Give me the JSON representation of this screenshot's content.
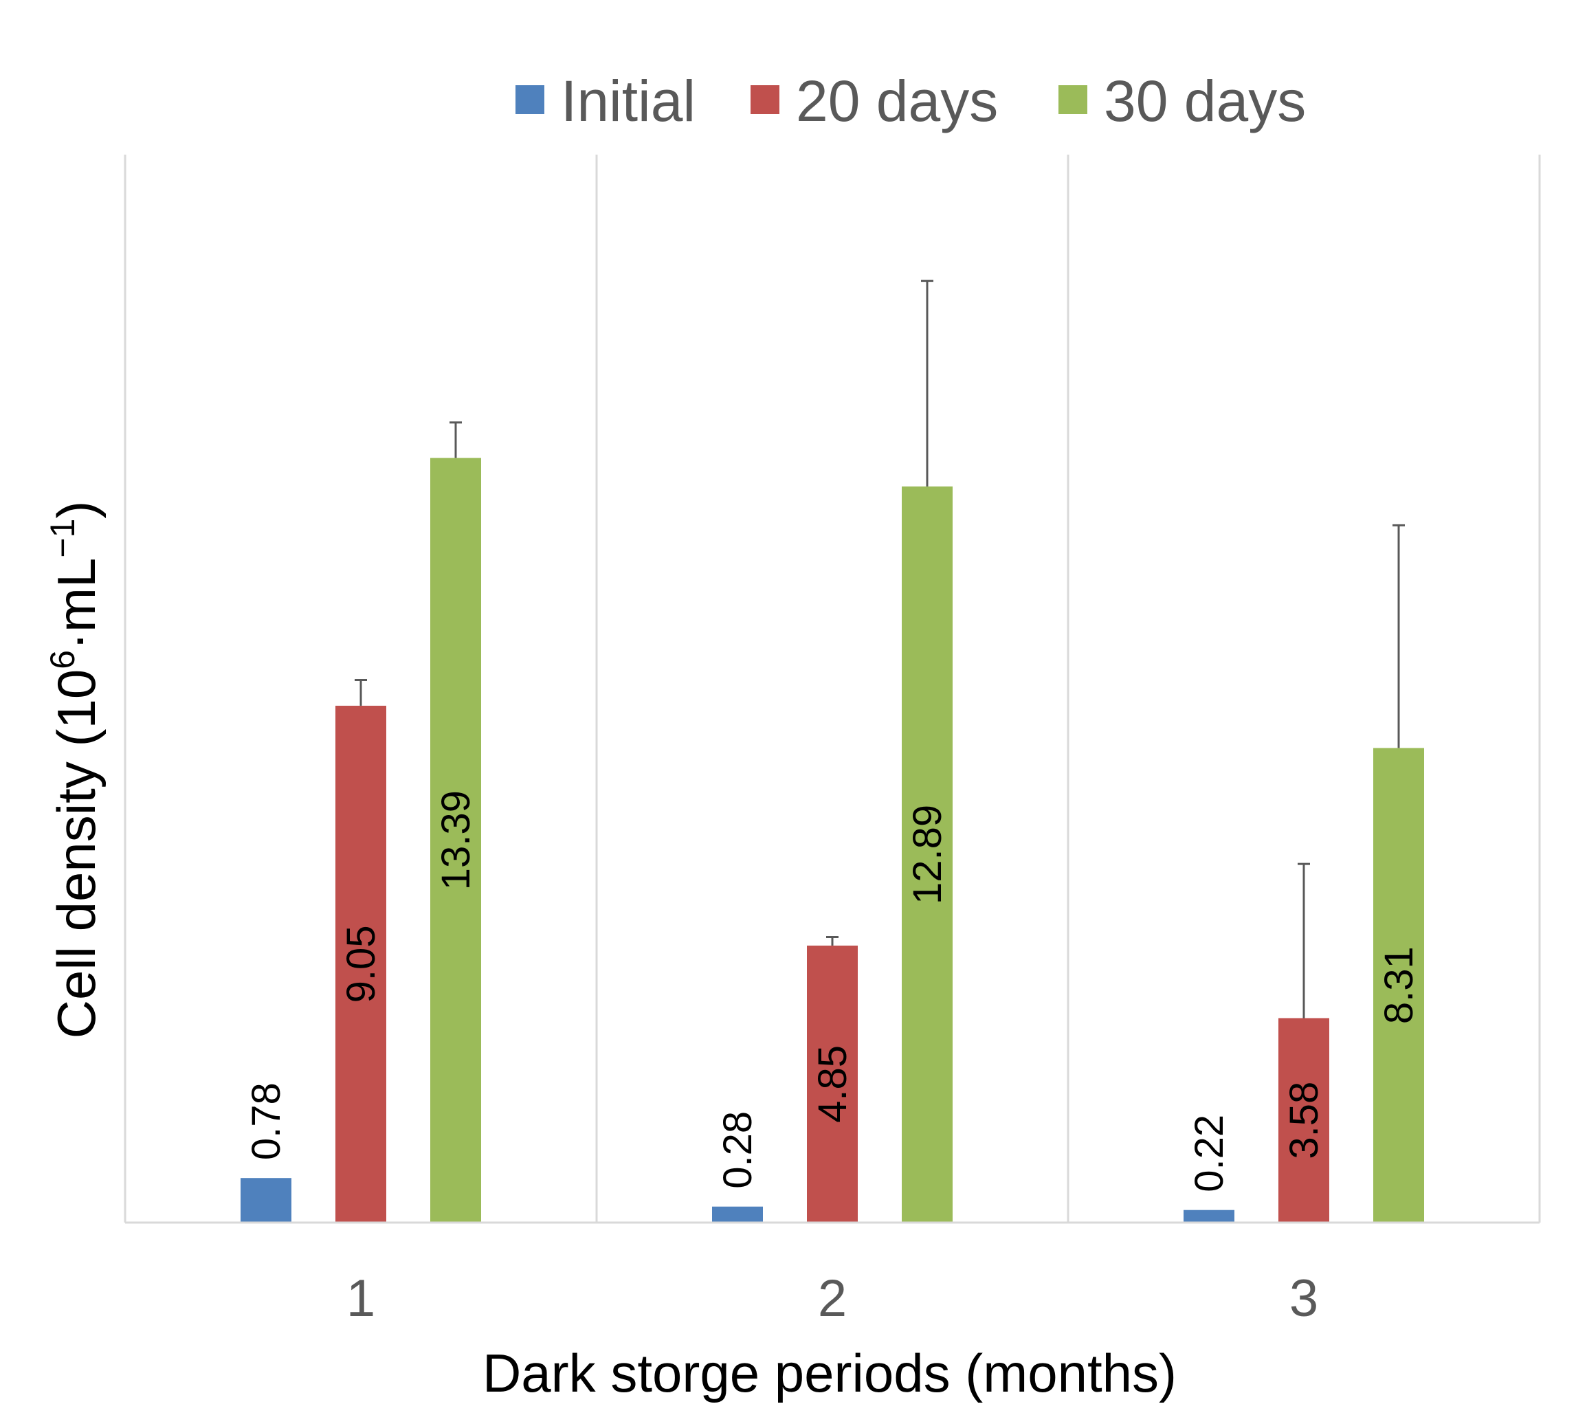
{
  "chart_data": {
    "type": "bar",
    "title": "",
    "xlabel": "Dark storge periods (months)",
    "ylabel_main": "Cell density (10",
    "ylabel_sup1": "6",
    "ylabel_mid": "·mL",
    "ylabel_sup2": "−1",
    "ylabel_end": ")",
    "categories": [
      "1",
      "2",
      "3"
    ],
    "ylim": [
      0,
      18.7
    ],
    "grid": "vertical separators",
    "legend_position": "top",
    "series": [
      {
        "name": "Initial",
        "color": "#4F81BD",
        "values": [
          0.78,
          0.28,
          0.22
        ],
        "errors": [
          0,
          0,
          0
        ],
        "labels": [
          "0.78",
          "0.28",
          "0.22"
        ]
      },
      {
        "name": "20 days",
        "color": "#C0504D",
        "values": [
          9.05,
          4.85,
          3.58
        ],
        "errors": [
          0.45,
          0.15,
          2.7
        ],
        "labels": [
          "9.05",
          "4.85",
          "3.58"
        ]
      },
      {
        "name": "30 days",
        "color": "#9BBB59",
        "values": [
          13.39,
          12.89,
          8.31
        ],
        "errors": [
          0.62,
          3.6,
          3.9
        ],
        "labels": [
          "13.39",
          "12.89",
          "8.31"
        ]
      }
    ]
  }
}
